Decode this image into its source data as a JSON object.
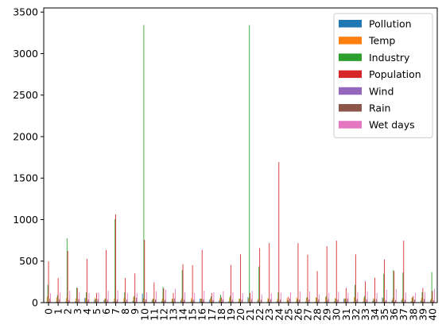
{
  "chart_data": {
    "type": "bar",
    "title": "",
    "xlabel": "",
    "ylabel": "",
    "ylim": [
      0,
      3550
    ],
    "yticks": [
      0,
      500,
      1000,
      1500,
      2000,
      2500,
      3000,
      3500
    ],
    "grid": false,
    "legend_position": "top-right",
    "x_tick_rotation": 90,
    "categories": [
      "0",
      "1",
      "2",
      "3",
      "4",
      "5",
      "6",
      "7",
      "8",
      "9",
      "10",
      "11",
      "12",
      "13",
      "14",
      "15",
      "16",
      "17",
      "18",
      "19",
      "20",
      "21",
      "22",
      "23",
      "24",
      "25",
      "26",
      "27",
      "28",
      "29",
      "30",
      "31",
      "32",
      "33",
      "34",
      "35",
      "36",
      "37",
      "38",
      "39",
      "40"
    ],
    "series": [
      {
        "name": "Pollution",
        "color": "#1f77b4",
        "values": [
          10,
          13,
          12,
          17,
          56,
          36,
          29,
          14,
          10,
          24,
          110,
          28,
          17,
          8,
          30,
          9,
          47,
          35,
          29,
          14,
          14,
          65,
          26,
          9,
          16,
          6,
          11,
          11,
          10,
          9,
          16,
          47,
          11,
          14,
          26,
          61,
          28,
          31,
          16,
          26,
          29
        ]
      },
      {
        "name": "Temp",
        "color": "#ff7f0e",
        "values": [
          70,
          61,
          56,
          51,
          55,
          58,
          51,
          49,
          55,
          68,
          50,
          47,
          49,
          47,
          52,
          55,
          50,
          50,
          52,
          57,
          49,
          50,
          46,
          54,
          43,
          57,
          61,
          55,
          65,
          62,
          55,
          51,
          66,
          57,
          54,
          51,
          54,
          52,
          59,
          57,
          51
        ]
      },
      {
        "name": "Industry",
        "color": "#2ca02c",
        "values": [
          213,
          91,
          775,
          181,
          125,
          44,
          46,
          1007,
          125,
          80,
          3344,
          46,
          191,
          44,
          391,
          34,
          47,
          75,
          96,
          80,
          46,
          3344,
          434,
          44,
          125,
          28,
          44,
          64,
          56,
          80,
          44,
          46,
          213,
          80,
          41,
          347,
          391,
          361,
          62,
          125,
          368
        ]
      },
      {
        "name": "Population",
        "color": "#d62728",
        "values": [
          496,
          296,
          623,
          176,
          529,
          116,
          634,
          1064,
          297,
          352,
          757,
          244,
          169,
          116,
          463,
          452,
          635,
          115,
          65,
          453,
          582,
          115,
          657,
          717,
          1692,
          71,
          716,
          577,
          379,
          680,
          746,
          177,
          582,
          257,
          300,
          520,
          379,
          746,
          80,
          176,
          139
        ]
      },
      {
        "name": "Wind",
        "color": "#9467bd",
        "values": [
          9,
          10,
          11,
          7,
          9,
          9,
          9,
          11,
          9,
          9,
          9,
          8,
          10,
          6,
          7,
          9,
          10,
          8,
          9,
          9,
          9,
          10,
          9,
          9,
          11,
          6,
          11,
          8,
          10,
          12,
          9,
          9,
          10,
          8,
          10,
          10,
          9,
          12,
          8,
          7,
          7
        ]
      },
      {
        "name": "Rain",
        "color": "#8c564b",
        "values": [
          48,
          43,
          33,
          42,
          36,
          42,
          35,
          38,
          37,
          59,
          39,
          38,
          34,
          50,
          36,
          38,
          42,
          33,
          40,
          36,
          38,
          43,
          38,
          41,
          36,
          48,
          37,
          40,
          42,
          42,
          37,
          49,
          42,
          40,
          44,
          30,
          30,
          35,
          36,
          44,
          30
        ]
      },
      {
        "name": "Wet days",
        "color": "#e377c2",
        "values": [
          115,
          122,
          145,
          122,
          118,
          122,
          142,
          148,
          118,
          117,
          126,
          135,
          155,
          167,
          127,
          115,
          143,
          125,
          137,
          127,
          115,
          141,
          99,
          111,
          119,
          125,
          135,
          135,
          101,
          118,
          130,
          119,
          128,
          135,
          116,
          155,
          166,
          120,
          117,
          129,
          166
        ]
      }
    ]
  }
}
